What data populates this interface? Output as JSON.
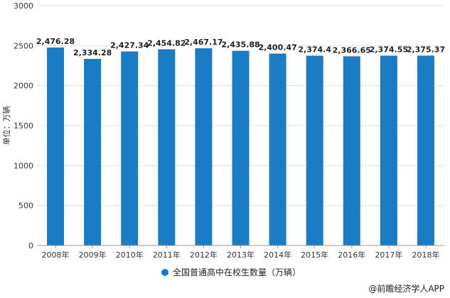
{
  "chart_data": {
    "type": "bar",
    "categories": [
      "2008年",
      "2009年",
      "2010年",
      "2011年",
      "2012年",
      "2013年",
      "2014年",
      "2015年",
      "2016年",
      "2017年",
      "2018年"
    ],
    "series": [
      {
        "name": "全国普通高中在校生数量（万辆）",
        "values": [
          2476.28,
          2334.28,
          2427.34,
          2454.82,
          2467.17,
          2435.88,
          2400.47,
          2374.4,
          2366.65,
          2374.55,
          2375.37
        ]
      }
    ],
    "data_labels": [
      "2,476.28",
      "2,334.28",
      "2,427.34",
      "2,454.82",
      "2,467.17",
      "2,435.88",
      "2,400.47",
      "2,374.4",
      "2,366.65",
      "2,374.55",
      "2,375.37"
    ],
    "y_ticks": [
      "0",
      "500",
      "1000",
      "1500",
      "2000",
      "2500",
      "3000"
    ],
    "ylabel": "单位：万辆",
    "ylim": [
      0,
      3000
    ],
    "grid": true,
    "legend_position": "bottom-center",
    "bar_color": "#1a7cc4"
  },
  "credit": {
    "text": "@前瞻经济学人APP"
  }
}
